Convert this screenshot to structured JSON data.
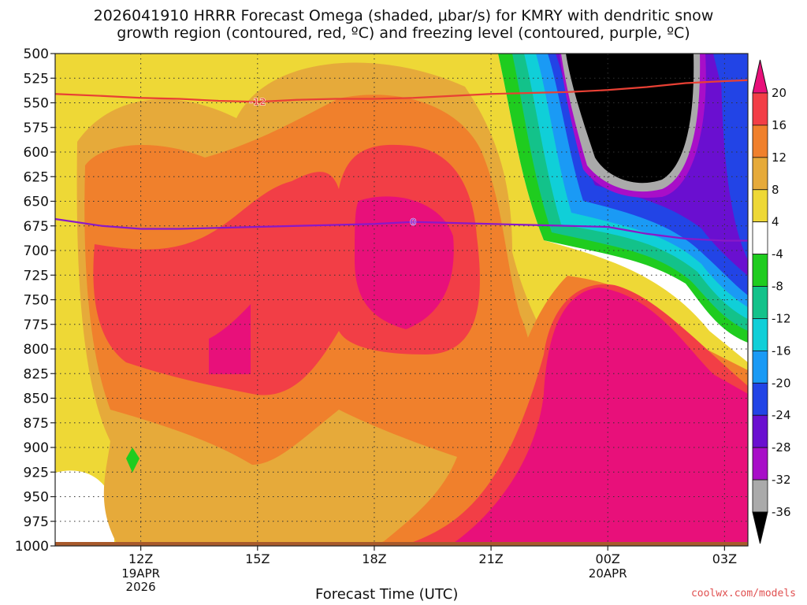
{
  "title_line1": "2026041910 HRRR Forecast Omega (shaded, μbar/s) for KMRY with dendritic snow",
  "title_line2": "growth region (contoured, red, ºC) and freezing level (contoured, purple, ºC)",
  "credit": "coolwx.com/models",
  "chart_data": {
    "type": "heatmap",
    "title": "2026041910 HRRR Forecast Omega (shaded, μbar/s) for KMRY with dendritic snow growth region (contoured, red, ºC) and freezing level (contoured, purple, ºC)",
    "xlabel": "Forecast Time (UTC)",
    "ylabel": "",
    "y_axis": {
      "reversed": true,
      "ylim": [
        1000,
        500
      ],
      "ticks": [
        500,
        525,
        550,
        575,
        600,
        625,
        650,
        675,
        700,
        725,
        750,
        775,
        800,
        825,
        850,
        875,
        900,
        925,
        950,
        975,
        1000
      ]
    },
    "x_axis": {
      "range_hours": [
        9.8,
        27.6
      ],
      "ticks": [
        {
          "hour": 12,
          "label": "12Z",
          "sub1": "19APR",
          "sub2": "2026"
        },
        {
          "hour": 15,
          "label": "15Z",
          "sub1": "",
          "sub2": ""
        },
        {
          "hour": 18,
          "label": "18Z",
          "sub1": "",
          "sub2": ""
        },
        {
          "hour": 21,
          "label": "21Z",
          "sub1": "",
          "sub2": ""
        },
        {
          "hour": 24,
          "label": "00Z",
          "sub1": "20APR",
          "sub2": ""
        },
        {
          "hour": 27,
          "label": "03Z",
          "sub1": "",
          "sub2": ""
        }
      ]
    },
    "grid": "dotted",
    "colorbar": {
      "labels": [
        20,
        16,
        12,
        8,
        4,
        -4,
        -8,
        -12,
        -16,
        -20,
        -24,
        -28,
        -32,
        -36
      ],
      "colors": [
        "#e8107a",
        "#f23e46",
        "#f0802c",
        "#e6aa3a",
        "#eed836",
        "#ffffff",
        "#1fcc1f",
        "#13c28a",
        "#10cfd8",
        "#1a9af5",
        "#2244e6",
        "#6a0fd0",
        "#a80ec8",
        "#aaaaaa",
        "#000000"
      ]
    },
    "contours": [
      {
        "field": "temperature",
        "value": -12,
        "label": "-12",
        "color": "#e84034",
        "points": [
          [
            9.8,
            541
          ],
          [
            11,
            543
          ],
          [
            12,
            545
          ],
          [
            13,
            546
          ],
          [
            14,
            548
          ],
          [
            15,
            549
          ],
          [
            16,
            547
          ],
          [
            17,
            546
          ],
          [
            18,
            546
          ],
          [
            19,
            545
          ],
          [
            20,
            543
          ],
          [
            21,
            541
          ],
          [
            22,
            540
          ],
          [
            23,
            539
          ],
          [
            24,
            537
          ],
          [
            25,
            534
          ],
          [
            26,
            530
          ],
          [
            27,
            528
          ],
          [
            27.6,
            527
          ]
        ]
      },
      {
        "field": "temperature",
        "value": 0,
        "label": "0",
        "color": "#8a18c8",
        "points": [
          [
            9.8,
            668
          ],
          [
            11,
            675
          ],
          [
            12,
            678
          ],
          [
            13,
            678
          ],
          [
            14,
            677
          ],
          [
            15,
            676
          ],
          [
            16,
            675
          ],
          [
            17,
            674
          ],
          [
            18,
            673
          ],
          [
            19,
            671
          ],
          [
            20,
            672
          ],
          [
            21,
            673
          ],
          [
            22,
            674
          ],
          [
            23,
            675
          ],
          [
            24,
            676
          ],
          [
            25,
            683
          ],
          [
            26,
            688
          ],
          [
            27,
            690
          ],
          [
            27.6,
            690
          ]
        ]
      }
    ]
  }
}
